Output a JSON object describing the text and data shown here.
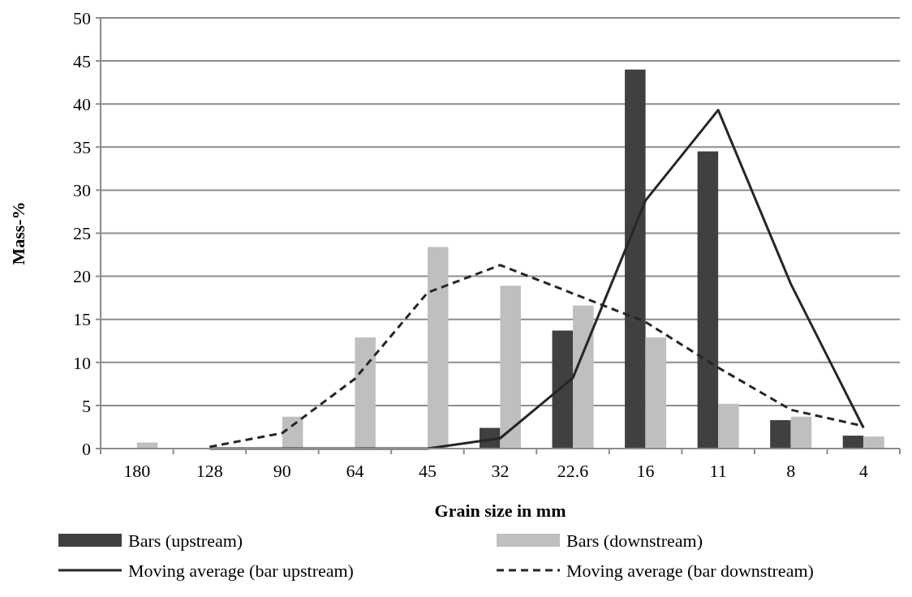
{
  "chart_data": {
    "type": "bar",
    "xlabel": "Grain size in mm",
    "ylabel": "Mass-%",
    "categories": [
      "180",
      "128",
      "90",
      "64",
      "45",
      "32",
      "22.6",
      "16",
      "11",
      "8",
      "4"
    ],
    "series": [
      {
        "name": "Bars (upstream)",
        "color": "#404040",
        "values": [
          0,
          0,
          0,
          0,
          0,
          2.4,
          13.7,
          44.0,
          34.5,
          3.3,
          1.5
        ]
      },
      {
        "name": "Bars (downstream)",
        "color": "#bfbfbf",
        "values": [
          0.7,
          0,
          3.7,
          12.9,
          23.4,
          18.9,
          16.6,
          12.9,
          5.2,
          3.7,
          1.4
        ]
      },
      {
        "name": "Moving average (bar upstream)",
        "type": "line",
        "color": "#262626",
        "line_style": "solid",
        "values": [
          null,
          0,
          0,
          0,
          0,
          1.2,
          8.2,
          28.8,
          39.3,
          19.1,
          2.4
        ]
      },
      {
        "name": "Moving average (bar downstream)",
        "type": "line",
        "color": "#262626",
        "line_style": "dashed",
        "values": [
          null,
          0.2,
          1.8,
          8.1,
          18.1,
          21.3,
          18.0,
          14.7,
          9.4,
          4.5,
          2.6
        ]
      }
    ],
    "ylim": [
      0,
      50
    ],
    "yticks": [
      0,
      5,
      10,
      15,
      20,
      25,
      30,
      35,
      40,
      45,
      50
    ],
    "grid": "y",
    "legend": "bottom",
    "marker": "none"
  }
}
